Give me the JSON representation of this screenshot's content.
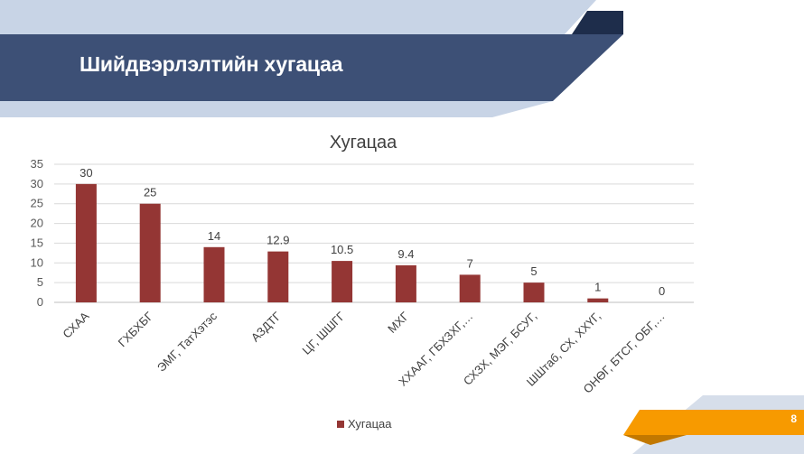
{
  "slide": {
    "title": "Шийдвэрлэлтийн хугацаа",
    "page_number": "8"
  },
  "colors": {
    "banner_dark": "#3d5076",
    "banner_light": "#c8d4e6",
    "bar": "#943634",
    "accent_orange": "#f79a00",
    "grid": "#d9d9d9"
  },
  "chart_data": {
    "type": "bar",
    "title": "Хугацаа",
    "categories": [
      "СХАА",
      "ГХБХБГ",
      "ЭМГ, ТатХэтэс",
      "АЗДТГ",
      "ЦГ, ШШГГ",
      "МХГ",
      "ХХААГ, ГБХЗХГ,…",
      "СХЗХ, МЭГ, БСУГ,",
      "ШШтаб, СХ, ХХҮГ,",
      "ОНӨГ, БТСГ, ОБГ,…"
    ],
    "series": [
      {
        "name": "Хугацаа",
        "values": [
          30,
          25,
          14,
          12.9,
          10.5,
          9.4,
          7,
          5,
          1,
          0
        ]
      }
    ],
    "data_labels": [
      "30",
      "25",
      "14",
      "12.9",
      "10.5",
      "9.4",
      "7",
      "5",
      "1",
      "0"
    ],
    "y_ticks": [
      "0",
      "5",
      "10",
      "15",
      "20",
      "25",
      "30",
      "35"
    ],
    "ylim": [
      0,
      35
    ],
    "grid": true,
    "legend_position": "bottom"
  }
}
